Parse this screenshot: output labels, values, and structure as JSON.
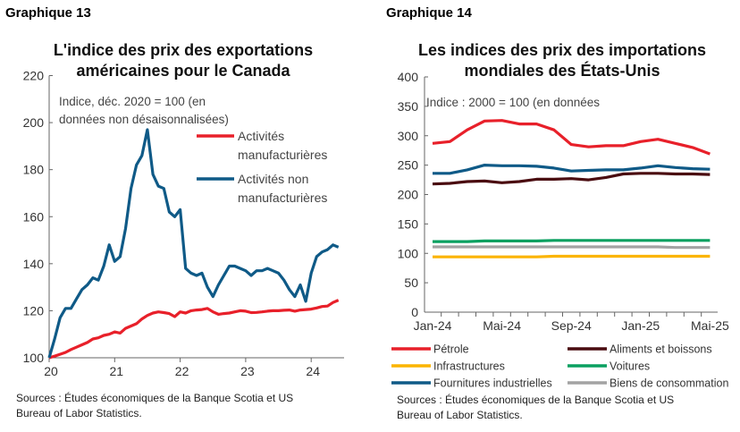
{
  "chart_data": [
    {
      "label": "Graphique 13",
      "type": "line",
      "title": "L'indice des prix des exportations américaines pour le Canada",
      "subtitle": [
        "Indice, déc. 2020 = 100 (en",
        "données non désaisonnalisées)"
      ],
      "x_ticks": [
        "20",
        "21",
        "22",
        "23",
        "24"
      ],
      "x_range": [
        2020,
        2024.5
      ],
      "ylim": [
        100,
        220
      ],
      "y_ticks": [
        100,
        120,
        140,
        160,
        180,
        200,
        220
      ],
      "grid": false,
      "legend": "top-right",
      "x_start": "Jan-2020",
      "x_step": "month",
      "series": [
        {
          "name": "Activités manufacturières",
          "color": "#e8202a",
          "values": [
            100,
            100.7,
            101.5,
            102.3,
            103.5,
            104.5,
            105.5,
            106.5,
            108,
            108.5,
            109.5,
            110,
            111,
            110.5,
            112.5,
            113.5,
            114.5,
            116.5,
            118,
            119,
            119.5,
            119.2,
            118.8,
            117.5,
            119.5,
            119,
            120,
            120.3,
            120.5,
            121,
            119.5,
            118.5,
            118.8,
            119,
            119.5,
            120,
            119.8,
            119.2,
            119.3,
            119.5,
            119.8,
            120,
            120,
            120.2,
            120.3,
            119.8,
            120.3,
            120.5,
            120.7,
            121.2,
            121.8,
            122,
            123.5,
            124.5
          ]
        },
        {
          "name": "Activités non manufacturières",
          "color": "#0f5a87",
          "values": [
            100,
            108,
            117,
            121,
            121,
            125,
            129,
            131,
            134,
            133,
            139,
            148,
            141,
            143,
            155,
            172,
            182,
            186,
            197,
            178,
            173,
            172,
            162,
            160,
            163,
            138,
            136,
            135,
            136,
            130,
            126,
            131,
            135,
            139,
            139,
            138,
            137,
            135,
            137,
            137,
            138,
            137,
            136,
            133,
            129,
            126,
            131,
            124,
            136,
            143,
            145,
            146,
            148,
            147
          ]
        }
      ],
      "legend_lines": [
        [
          "Activités",
          "manufacturières"
        ],
        [
          "Activités non",
          "manufacturières"
        ]
      ],
      "source": [
        "Sources : Études économiques de la Banque Scotia et US",
        "Bureau of Labor Statistics."
      ]
    },
    {
      "label": "Graphique 14",
      "type": "line",
      "title": "Les indices des prix des importations mondiales des États-Unis",
      "title_lines": [
        "Les indices des prix des importations",
        "mondiales des États-Unis"
      ],
      "subtitle": "Indice : 2000 = 100 (en données",
      "categories": [
        "Jan-24",
        "Feb-24",
        "Mar-24",
        "Apr-24",
        "Mai-24",
        "Jun-24",
        "Jul-24",
        "Aug-24",
        "Sep-24",
        "Oct-24",
        "Nov-24",
        "Dec-24",
        "Jan-25",
        "Feb-25",
        "Mar-25",
        "Apr-25",
        "Mai-25"
      ],
      "x_tick_labels": [
        "Jan-24",
        "Mai-24",
        "Sep-24",
        "Jan-25",
        "Mai-25"
      ],
      "ylim": [
        0,
        400
      ],
      "y_ticks": [
        0,
        50,
        100,
        150,
        200,
        250,
        300,
        350,
        400
      ],
      "grid": false,
      "legend": "bottom",
      "series": [
        {
          "name": "Pétrole",
          "color": "#e8202a",
          "values": [
            287,
            290,
            310,
            325,
            326,
            320,
            320,
            310,
            285,
            281,
            283,
            283,
            290,
            294,
            287,
            280,
            269
          ]
        },
        {
          "name": "Aliments et boissons",
          "color": "#4a0c10",
          "values": [
            218,
            219,
            222,
            223,
            220,
            222,
            226,
            226,
            227,
            225,
            229,
            235,
            236,
            236,
            235,
            235,
            234
          ]
        },
        {
          "name": "Infrastructures",
          "color": "#fbb400",
          "values": [
            94,
            94,
            94,
            94,
            94,
            94,
            94,
            95,
            95,
            95,
            95,
            95,
            95,
            95,
            95,
            95,
            95
          ]
        },
        {
          "name": "Voitures",
          "color": "#0aa060",
          "values": [
            120,
            120,
            120,
            121,
            121,
            121,
            121,
            122,
            122,
            122,
            122,
            122,
            122,
            122,
            122,
            122,
            122
          ]
        },
        {
          "name": "Fournitures industrielles",
          "color": "#0f5a87",
          "values": [
            236,
            236,
            242,
            250,
            249,
            249,
            248,
            245,
            240,
            241,
            242,
            242,
            245,
            249,
            246,
            244,
            243
          ]
        },
        {
          "name": "Biens de consommation",
          "color": "#a3a3a3",
          "values": [
            111,
            111,
            111,
            111,
            111,
            111,
            111,
            111,
            111,
            111,
            111,
            111,
            111,
            111,
            110,
            110,
            110
          ]
        }
      ],
      "source": [
        "Sources : Études économiques de la Banque Scotia et US",
        "Bureau of Labor Statistics."
      ]
    }
  ]
}
